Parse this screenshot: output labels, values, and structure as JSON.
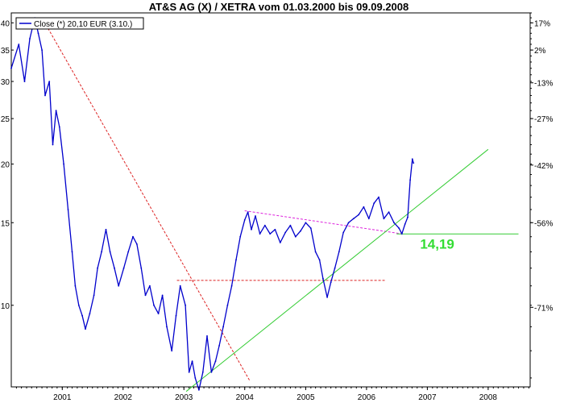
{
  "chart_data": {
    "type": "line",
    "title": "AT&S AG (X) / XETRA vom 01.03.2000 bis 09.09.2008",
    "legend": {
      "label": "Close (*) 20,10 EUR (3.10.)",
      "placement": "top-left"
    },
    "x_range": [
      "2000-03-01",
      "2008-09-09"
    ],
    "x_ticks": [
      "2001",
      "2002",
      "2003",
      "2004",
      "2005",
      "2006",
      "2007",
      "2008"
    ],
    "y_scale": "log",
    "y_range": [
      6.7,
      42
    ],
    "y_ticks_left": [
      {
        "value": 40,
        "label": "40"
      },
      {
        "value": 35,
        "label": "35"
      },
      {
        "value": 30,
        "label": "30"
      },
      {
        "value": 25,
        "label": "25"
      },
      {
        "value": 20,
        "label": "20"
      },
      {
        "value": 15,
        "label": "15"
      },
      {
        "value": 10,
        "label": "10"
      }
    ],
    "y_ticks_right": [
      {
        "value": 40.0,
        "label": "17%"
      },
      {
        "value": 35.0,
        "label": "2%"
      },
      {
        "value": 29.8,
        "label": "-13%"
      },
      {
        "value": 25.0,
        "label": "-27%"
      },
      {
        "value": 19.9,
        "label": "-42%"
      },
      {
        "value": 15.0,
        "label": "-56%"
      },
      {
        "value": 9.9,
        "label": "-71%"
      }
    ],
    "grid": false,
    "series": [
      {
        "name": "Close (*) 20,10 EUR (3.10.)",
        "color": "#0000cc",
        "x": [
          "2000-03-01",
          "2000-04-15",
          "2000-05-20",
          "2000-06-20",
          "2000-07-20",
          "2000-08-10",
          "2000-09-01",
          "2000-09-20",
          "2000-10-15",
          "2000-11-05",
          "2000-11-25",
          "2000-12-15",
          "2001-01-10",
          "2001-02-05",
          "2001-03-01",
          "2001-03-20",
          "2001-04-10",
          "2001-05-01",
          "2001-05-20",
          "2001-06-15",
          "2001-07-10",
          "2001-08-01",
          "2001-08-25",
          "2001-09-20",
          "2001-10-15",
          "2001-11-10",
          "2001-12-05",
          "2002-01-05",
          "2002-02-01",
          "2002-03-01",
          "2002-03-25",
          "2002-04-20",
          "2002-05-15",
          "2002-06-10",
          "2002-07-05",
          "2002-08-01",
          "2002-08-25",
          "2002-09-20",
          "2002-10-20",
          "2002-11-15",
          "2002-12-10",
          "2003-01-10",
          "2003-02-01",
          "2003-02-20",
          "2003-03-10",
          "2003-04-01",
          "2003-04-25",
          "2003-05-20",
          "2003-06-15",
          "2003-07-10",
          "2003-08-01",
          "2003-08-25",
          "2003-09-20",
          "2003-10-15",
          "2003-11-10",
          "2003-12-05",
          "2004-01-01",
          "2004-01-20",
          "2004-02-10",
          "2004-03-05",
          "2004-04-01",
          "2004-05-01",
          "2004-06-01",
          "2004-07-01",
          "2004-08-01",
          "2004-09-01",
          "2004-10-01",
          "2004-11-01",
          "2004-12-01",
          "2005-01-01",
          "2005-02-01",
          "2005-03-01",
          "2005-03-25",
          "2005-04-15",
          "2005-05-10",
          "2005-06-01",
          "2005-06-25",
          "2005-07-20",
          "2005-08-15",
          "2005-09-15",
          "2005-10-15",
          "2005-11-15",
          "2005-12-15",
          "2006-01-15",
          "2006-02-15",
          "2006-03-15",
          "2006-04-15",
          "2006-05-15",
          "2006-06-15",
          "2006-07-15",
          "2006-08-01",
          "2006-08-20",
          "2006-09-05",
          "2006-09-20",
          "2006-10-03",
          "2006-10-10"
        ],
        "values": [
          32,
          36,
          30,
          37,
          41,
          38,
          35,
          28,
          30,
          22,
          26,
          24,
          20,
          16,
          13,
          11,
          10,
          9.5,
          8.9,
          9.6,
          10.5,
          12,
          13,
          14.5,
          13,
          12,
          11,
          12,
          13,
          14,
          13.5,
          12,
          10.5,
          11,
          10,
          9.6,
          10.5,
          9,
          8,
          9.5,
          11,
          10,
          7.2,
          7.6,
          7,
          6.6,
          7.2,
          8.6,
          7.2,
          7.6,
          8.2,
          9,
          10,
          11,
          12.5,
          14,
          15.2,
          15.8,
          14.5,
          15.5,
          14.2,
          14.8,
          14.2,
          14.5,
          13.6,
          14.3,
          14.8,
          14.0,
          14.4,
          15.0,
          14.6,
          13.0,
          12.5,
          11.4,
          10.4,
          11.2,
          12.0,
          13.0,
          14.3,
          15.0,
          15.3,
          15.6,
          16.2,
          15.3,
          16.5,
          17.0,
          15.3,
          15.8,
          15.0,
          14.6,
          14.2,
          14.9,
          15.4,
          18.5,
          20.5,
          20.1
        ]
      }
    ],
    "trendlines": [
      {
        "name": "downtrend",
        "style": "dashed",
        "color": "#dd2222",
        "x": [
          "2000-09-01",
          "2004-02-01"
        ],
        "values": [
          41,
          6.9
        ]
      },
      {
        "name": "horizontal",
        "style": "dashed",
        "color": "#dd2222",
        "x": [
          "2002-11-20",
          "2006-04-20"
        ],
        "values": [
          11.3,
          11.3
        ]
      },
      {
        "name": "resistance",
        "style": "dashed",
        "color": "#dd22dd",
        "x": [
          "2004-01-01",
          "2006-08-01"
        ],
        "values": [
          15.9,
          14.2
        ]
      },
      {
        "name": "uptrend",
        "style": "solid",
        "color": "#33cc33",
        "x": [
          "2003-01-15",
          "2008-01-01"
        ],
        "values": [
          6.55,
          21.5
        ]
      },
      {
        "name": "support-level",
        "style": "solid",
        "color": "#33cc33",
        "x": [
          "2006-07-01",
          "2008-07-01"
        ],
        "values": [
          14.19,
          14.19
        ]
      }
    ],
    "annotations": [
      {
        "text": "14,19",
        "x": "2007-03-01",
        "value": 14.19,
        "color": "#33dd33"
      }
    ]
  }
}
